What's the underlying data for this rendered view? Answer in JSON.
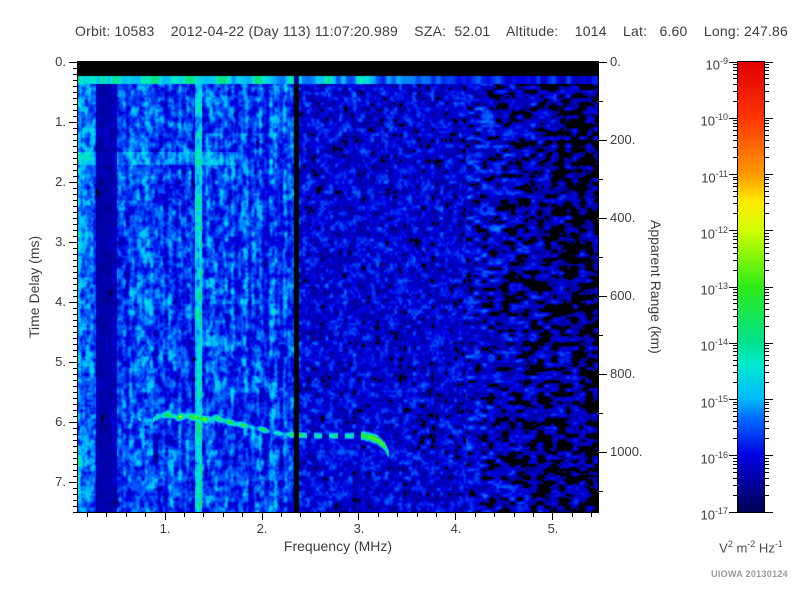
{
  "header": {
    "line": "Orbit: 10583    2012-04-22 (Day 113) 11:07:20.989    SZA:  52.01    Altitude:    1014    Lat:   6.60    Long: 247.86"
  },
  "credit": "UIOWA 20130124",
  "chart_data": {
    "type": "heatmap",
    "subtype": "radar-sounder-ionogram",
    "title": "",
    "xlabel": "Frequency (MHz)",
    "ylabel_left": "Time Delay (ms)",
    "ylabel_right": "Apparent Range (km)",
    "x_range_mhz": [
      0.103,
      5.464
    ],
    "y_range_ms": [
      0,
      7.5
    ],
    "y2_range_km": [
      0,
      1153
    ],
    "x_ticks": {
      "values": [
        1,
        2,
        3,
        4,
        5
      ],
      "labels": [
        "1.",
        "2.",
        "3.",
        "4.",
        "5."
      ],
      "minor_step": 0.2
    },
    "y_ticks": {
      "values": [
        0,
        1,
        2,
        3,
        4,
        5,
        6,
        7
      ],
      "labels": [
        "0.",
        "1.",
        "2.",
        "3.",
        "4.",
        "5.",
        "6.",
        "7."
      ],
      "minor_step": 0.1
    },
    "y2_ticks": {
      "values": [
        0,
        200,
        400,
        600,
        800,
        1000
      ],
      "labels": [
        "0.",
        "200.",
        "400.",
        "600.",
        "800.",
        "1000."
      ],
      "minor_step": 100
    },
    "colorbar": {
      "decades": [
        -9,
        -10,
        -11,
        -12,
        -13,
        -14,
        -15,
        -16,
        -17
      ],
      "unit_parts": [
        {
          "base": "V",
          "sup": "2"
        },
        {
          "base": " m",
          "sup": "-2"
        },
        {
          "base": " Hz",
          "sup": "-1"
        }
      ],
      "stops": [
        {
          "t": 0.0,
          "c": [
            0,
            0,
            85
          ]
        },
        {
          "t": 0.125,
          "c": [
            0,
            0,
            225
          ]
        },
        {
          "t": 0.21,
          "c": [
            0,
            110,
            255
          ]
        },
        {
          "t": 0.25,
          "c": [
            0,
            185,
            255
          ]
        },
        {
          "t": 0.33,
          "c": [
            0,
            235,
            205
          ]
        },
        {
          "t": 0.375,
          "c": [
            0,
            225,
            145
          ]
        },
        {
          "t": 0.5,
          "c": [
            45,
            235,
            25
          ]
        },
        {
          "t": 0.625,
          "c": [
            210,
            255,
            0
          ]
        },
        {
          "t": 0.69,
          "c": [
            255,
            235,
            0
          ]
        },
        {
          "t": 0.75,
          "c": [
            255,
            155,
            0
          ]
        },
        {
          "t": 0.875,
          "c": [
            255,
            55,
            0
          ]
        },
        {
          "t": 1.0,
          "c": [
            225,
            0,
            0
          ]
        }
      ]
    },
    "features": {
      "transmit_blank_ms": [
        0,
        0.235
      ],
      "receiver_onset_row_ms": [
        0.235,
        0.345
      ],
      "noise_regions": [
        {
          "f": [
            0.103,
            2.325
          ],
          "mean_level_log10": -15.8,
          "texture": "vertical-streaks"
        },
        {
          "f": [
            2.375,
            4.2
          ],
          "mean_level_log10": -16.1,
          "texture": "blobs"
        },
        {
          "f": [
            4.2,
            5.464
          ],
          "mean_level_log10": -16.8,
          "texture": "sparse-blobs-on-black"
        }
      ],
      "vertical_features": [
        {
          "f": [
            0.285,
            0.5
          ],
          "type": "dark-band"
        },
        {
          "f": [
            1.3,
            1.38
          ],
          "type": "bright-line"
        },
        {
          "f": [
            2.325,
            2.375
          ],
          "type": "dark-line"
        }
      ],
      "horizontal_band": {
        "delay_ms": [
          1.5,
          1.7
        ],
        "f_max": 1.75
      },
      "echo_trace_f_ms_level": [
        [
          0.62,
          6.0,
          0.3
        ],
        [
          0.72,
          5.92,
          0.34
        ],
        [
          0.82,
          6.02,
          0.32
        ],
        [
          0.92,
          5.9,
          0.42
        ],
        [
          1.02,
          5.86,
          0.46
        ],
        [
          1.12,
          5.92,
          0.5
        ],
        [
          1.22,
          5.88,
          0.52
        ],
        [
          1.32,
          5.92,
          0.46
        ],
        [
          1.42,
          5.96,
          0.5
        ],
        [
          1.52,
          5.92,
          0.44
        ],
        [
          1.62,
          5.98,
          0.5
        ],
        [
          1.72,
          6.02,
          0.46
        ],
        [
          1.82,
          6.05,
          0.42
        ],
        [
          1.95,
          6.1,
          0.44
        ],
        [
          2.1,
          6.16,
          0.4
        ],
        [
          2.25,
          6.2,
          0.44
        ],
        [
          2.45,
          6.22,
          0.4
        ],
        [
          2.6,
          6.22,
          0.36
        ],
        [
          2.75,
          6.22,
          0.4
        ],
        [
          2.9,
          6.22,
          0.36
        ],
        [
          3.05,
          6.22,
          0.48
        ],
        [
          3.18,
          6.28,
          0.5
        ],
        [
          3.26,
          6.4,
          0.44
        ],
        [
          3.3,
          6.52,
          0.36
        ]
      ]
    }
  },
  "layout_colors": {
    "background": "#ffffff",
    "axis": "#000000",
    "text": "#3d3d3d",
    "credit_text": "#9a9a9a"
  }
}
